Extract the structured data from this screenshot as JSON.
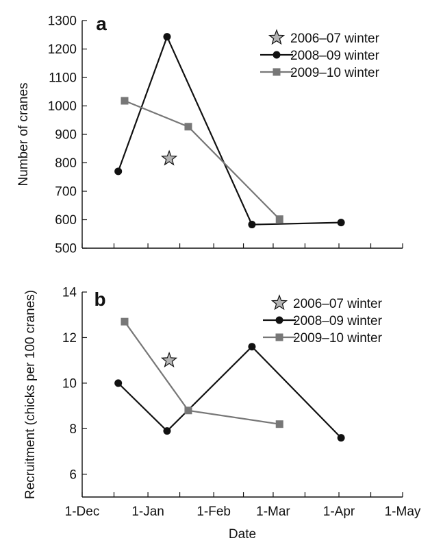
{
  "figure": {
    "xlabel": "Date",
    "x_ticks": [
      "1-Dec",
      "1-Jan",
      "1-Feb",
      "1-Mar",
      "1-Apr",
      "1-May"
    ]
  },
  "colors": {
    "series_2006": "#b4b4b4",
    "series_2008": "#111111",
    "series_2009": "#777777"
  },
  "chart_data": [
    {
      "type": "line",
      "panel": "a",
      "xlabel": "Date",
      "ylabel": "Number of cranes",
      "xlim": [
        "2008-12-01",
        "2009-05-01"
      ],
      "ylim": [
        500,
        1300
      ],
      "y_ticks": [
        500,
        600,
        700,
        800,
        900,
        1000,
        1100,
        1200,
        1300
      ],
      "x_ticks": [
        "1-Dec",
        "1-Jan",
        "1-Feb",
        "1-Mar",
        "1-Apr",
        "1-May"
      ],
      "legend": "top-right",
      "series": [
        {
          "name": "2006–07 winter",
          "marker": "star",
          "points": [
            {
              "x": "2009-01-11",
              "y": 815
            }
          ]
        },
        {
          "name": "2008–09 winter",
          "marker": "circle",
          "points": [
            {
              "x": "2008-12-18",
              "y": 770
            },
            {
              "x": "2009-01-10",
              "y": 1243
            },
            {
              "x": "2009-02-19",
              "y": 583
            },
            {
              "x": "2009-04-02",
              "y": 590
            }
          ]
        },
        {
          "name": "2009–10 winter",
          "marker": "square",
          "points": [
            {
              "x": "2008-12-21",
              "y": 1018
            },
            {
              "x": "2009-01-20",
              "y": 927
            },
            {
              "x": "2009-03-04",
              "y": 602
            }
          ]
        }
      ]
    },
    {
      "type": "line",
      "panel": "b",
      "xlabel": "Date",
      "ylabel": "Recruitment (chicks per 100 cranes)",
      "xlim": [
        "2008-12-01",
        "2009-05-01"
      ],
      "ylim": [
        5,
        14
      ],
      "y_ticks": [
        6,
        8,
        10,
        12,
        14
      ],
      "x_ticks": [
        "1-Dec",
        "1-Jan",
        "1-Feb",
        "1-Mar",
        "1-Apr",
        "1-May"
      ],
      "legend": "top-right",
      "series": [
        {
          "name": "2006–07 winter",
          "marker": "star",
          "points": [
            {
              "x": "2009-01-11",
              "y": 11.0
            }
          ]
        },
        {
          "name": "2008–09 winter",
          "marker": "circle",
          "points": [
            {
              "x": "2008-12-18",
              "y": 10.0
            },
            {
              "x": "2009-01-10",
              "y": 7.9
            },
            {
              "x": "2009-02-19",
              "y": 11.6
            },
            {
              "x": "2009-04-02",
              "y": 7.6
            }
          ]
        },
        {
          "name": "2009–10 winter",
          "marker": "square",
          "points": [
            {
              "x": "2008-12-21",
              "y": 12.7
            },
            {
              "x": "2009-01-20",
              "y": 8.8
            },
            {
              "x": "2009-03-04",
              "y": 8.2
            }
          ]
        }
      ]
    }
  ]
}
